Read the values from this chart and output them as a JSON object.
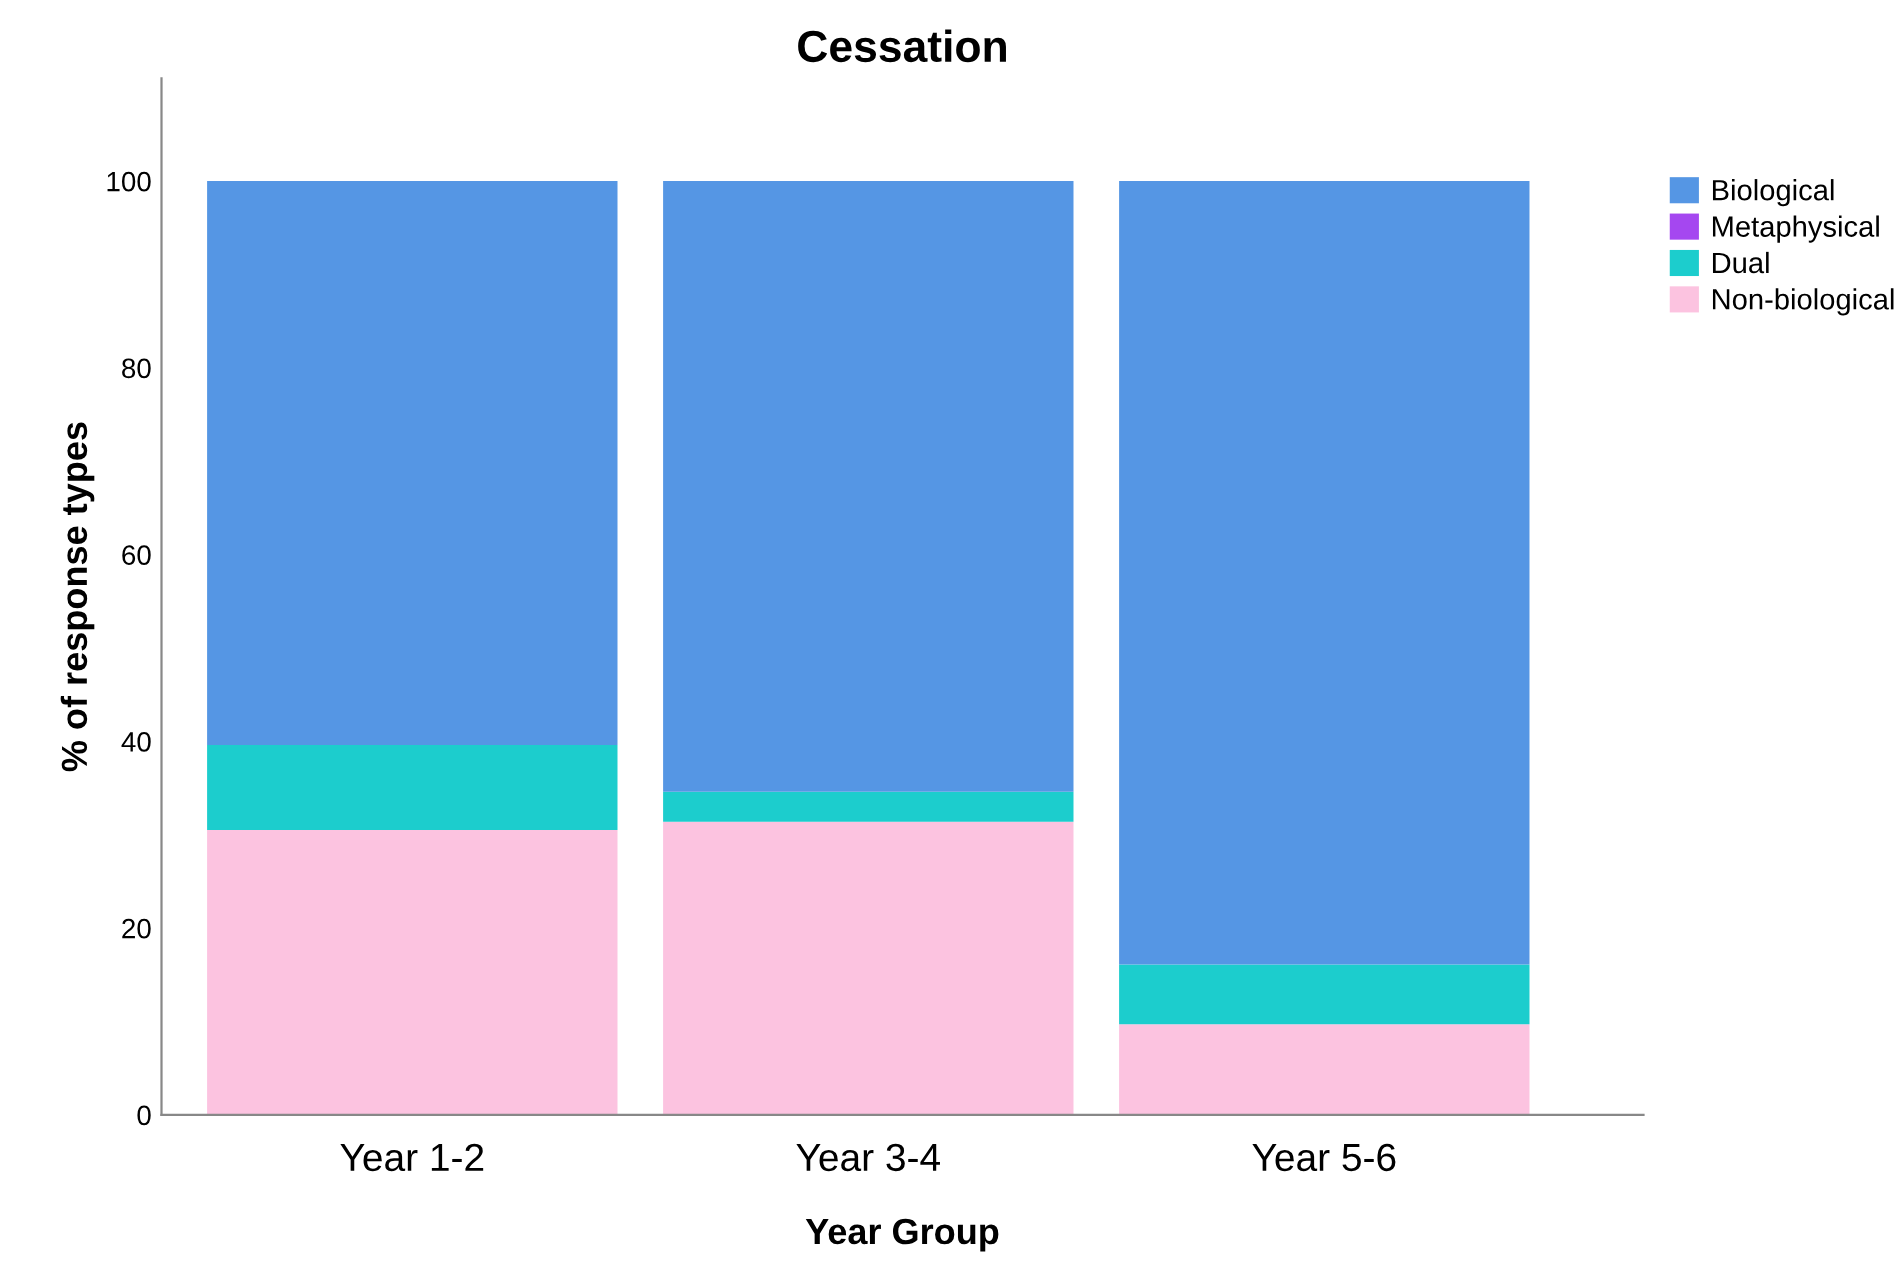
{
  "chart_data": {
    "type": "bar",
    "title": "Cessation",
    "xlabel": "Year Group",
    "ylabel": "% of response types",
    "categories": [
      "Year 1-2",
      "Year 3-4",
      "Year 5-6"
    ],
    "stacked": true,
    "series": [
      {
        "name": "Non-biological",
        "color": "#fcc3e0",
        "values": [
          30.5,
          31.4,
          9.7
        ]
      },
      {
        "name": "Dual",
        "color": "#1ccdcd",
        "values": [
          9.1,
          3.2,
          6.4
        ]
      },
      {
        "name": "Metaphysical",
        "color": "#a547f0",
        "values": [
          0,
          0,
          0
        ]
      },
      {
        "name": "Biological",
        "color": "#5596e4",
        "values": [
          60.4,
          65.4,
          83.9
        ]
      }
    ],
    "ylim": [
      0,
      111
    ],
    "yticks": [
      0,
      20,
      40,
      60,
      80,
      100
    ],
    "grid": false,
    "legend": "right"
  }
}
